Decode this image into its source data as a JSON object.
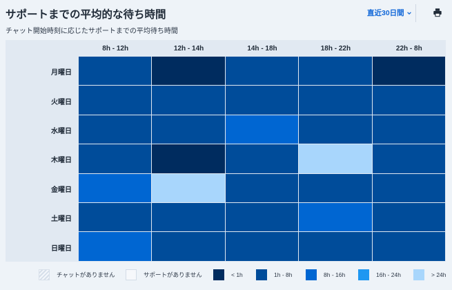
{
  "header": {
    "title": "サポートまでの平均的な待ち時間",
    "subtitle": "チャット開始時刻に応じたサポートまでの平均待ち時間",
    "range_label": "直近30日間"
  },
  "colors": {
    "< 1h": "#002c5f",
    "1h - 8h": "#004c9a",
    "8h - 16h": "#0066d2",
    "16h - 24h": "#1f97f1",
    "> 24h": "#a8d6fc"
  },
  "legend": [
    {
      "label": "チャットがありません",
      "kind": "none"
    },
    {
      "label": "サポートがありません",
      "kind": "no-support"
    },
    {
      "label": "< 1h",
      "kind": "< 1h"
    },
    {
      "label": "1h - 8h",
      "kind": "1h - 8h"
    },
    {
      "label": "8h - 16h",
      "kind": "8h - 16h"
    },
    {
      "label": "16h - 24h",
      "kind": "16h - 24h"
    },
    {
      "label": "> 24h",
      "kind": "> 24h"
    }
  ],
  "chart_data": {
    "type": "heatmap",
    "columns": [
      "8h - 12h",
      "12h - 14h",
      "14h - 18h",
      "18h - 22h",
      "22h - 8h"
    ],
    "rows": [
      "月曜日",
      "火曜日",
      "水曜日",
      "木曜日",
      "金曜日",
      "土曜日",
      "日曜日"
    ],
    "values": [
      [
        "1h - 8h",
        "< 1h",
        "1h - 8h",
        "1h - 8h",
        "< 1h"
      ],
      [
        "1h - 8h",
        "1h - 8h",
        "1h - 8h",
        "1h - 8h",
        "1h - 8h"
      ],
      [
        "1h - 8h",
        "1h - 8h",
        "8h - 16h",
        "1h - 8h",
        "1h - 8h"
      ],
      [
        "1h - 8h",
        "< 1h",
        "1h - 8h",
        "> 24h",
        "1h - 8h"
      ],
      [
        "8h - 16h",
        "> 24h",
        "1h - 8h",
        "1h - 8h",
        "1h - 8h"
      ],
      [
        "1h - 8h",
        "1h - 8h",
        "1h - 8h",
        "8h - 16h",
        "1h - 8h"
      ],
      [
        "8h - 16h",
        "1h - 8h",
        "1h - 8h",
        "1h - 8h",
        "1h - 8h"
      ]
    ]
  }
}
